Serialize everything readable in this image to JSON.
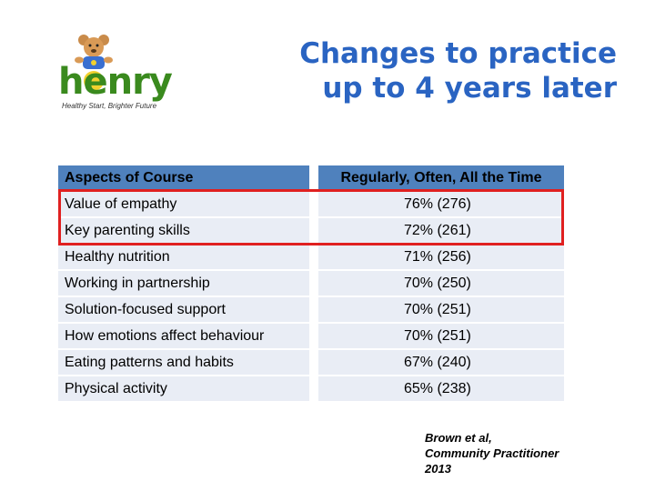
{
  "logo": {
    "text": "henry",
    "tagline": "Healthy Start, Brighter Future"
  },
  "title": {
    "line1": "Changes to practice",
    "line2": "up to 4 years later",
    "color": "#2a64c2"
  },
  "table": {
    "headers": [
      "Aspects of Course",
      "Regularly, Often, All the Time"
    ],
    "header_color": "#4f81bd",
    "row_color": "#e9edf5",
    "rows": [
      {
        "aspect": "Value of empathy",
        "value": "76% (276)"
      },
      {
        "aspect": "Key parenting skills",
        "value": "72% (261)"
      },
      {
        "aspect": "Healthy nutrition",
        "value": "71% (256)"
      },
      {
        "aspect": "Working in partnership",
        "value": "70% (250)"
      },
      {
        "aspect": "Solution-focused support",
        "value": "70% (251)"
      },
      {
        "aspect": "How emotions affect behaviour",
        "value": "70% (251)"
      },
      {
        "aspect": "Eating patterns and habits",
        "value": "67% (240)"
      },
      {
        "aspect": "Physical activity",
        "value": "65% (238)"
      }
    ],
    "highlight_color": "#e02020"
  },
  "citation": {
    "line1": "Brown et al,",
    "line2": "Community Practitioner",
    "line3": "2013"
  }
}
